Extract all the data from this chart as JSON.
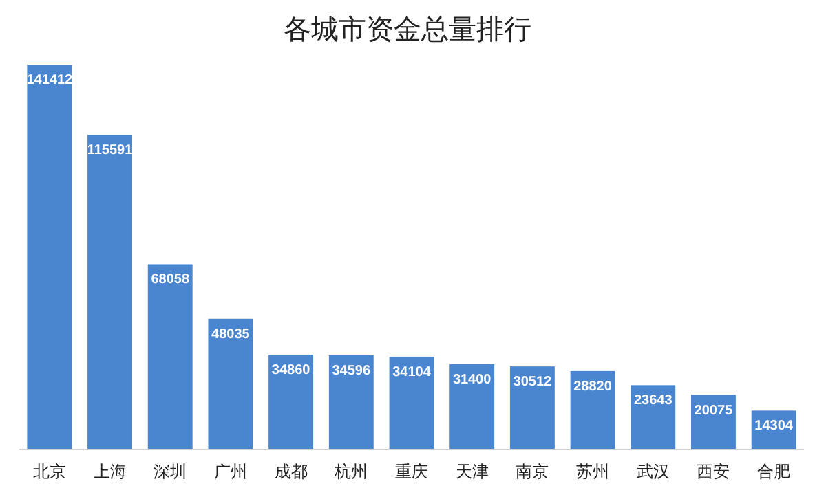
{
  "chart_data": {
    "type": "bar",
    "title": "各城市资金总量排行",
    "categories": [
      "北京",
      "上海",
      "深圳",
      "广州",
      "成都",
      "杭州",
      "重庆",
      "天津",
      "南京",
      "苏州",
      "武汉",
      "西安",
      "合肥"
    ],
    "values": [
      141412,
      115591,
      68058,
      48035,
      34860,
      34596,
      34104,
      31400,
      30512,
      28820,
      23643,
      20075,
      14304
    ],
    "color": "#4a86cf",
    "data_labels": true
  }
}
